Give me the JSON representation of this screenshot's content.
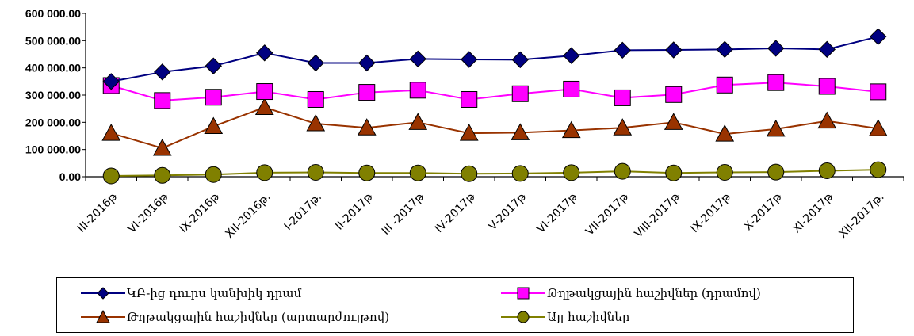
{
  "chart_data": {
    "type": "line",
    "categories": [
      "III-2016թ",
      "VI-2016թ",
      "IX-2016թ",
      "XII-2016թ.",
      "I-2017թ.",
      "II-2017թ",
      "III -2017թ",
      "IV-2017թ",
      "V-2017թ",
      "VI-2017թ",
      "VII-2017թ",
      "VIII-2017թ",
      "IX-2017թ",
      "X-2017թ",
      "XI-2017թ",
      "XII-2017թ."
    ],
    "ylim": [
      0,
      600000
    ],
    "yticks": [
      "0.00",
      "100 000.00",
      "200 000.00",
      "300 000.00",
      "400 000.00",
      "500 000.00",
      "600 000.00"
    ],
    "grid": false,
    "legend_position": "bottom",
    "series": [
      {
        "name": "ԿԲ-ից դուրս կանխիկ դրամ",
        "color": "#000080",
        "marker": "diamond",
        "values": [
          350000,
          385000,
          407000,
          455000,
          418000,
          418000,
          433000,
          431000,
          430000,
          445000,
          465000,
          466000,
          468000,
          472000,
          468000,
          515000
        ]
      },
      {
        "name": "Թղթակցային հաշիվներ (դրամով)",
        "color": "#ff00ff",
        "marker": "square",
        "values": [
          335000,
          280000,
          292000,
          313000,
          284000,
          310000,
          318000,
          284000,
          305000,
          322000,
          290000,
          302000,
          337000,
          346000,
          332000,
          312000
        ]
      },
      {
        "name": "Թղթակցային հաշիվներ (արտարժույթով)",
        "color": "#993300",
        "marker": "triangle",
        "values": [
          160000,
          105000,
          185000,
          255000,
          195000,
          180000,
          200000,
          160000,
          162000,
          170000,
          180000,
          200000,
          157000,
          175000,
          205000,
          177000
        ]
      },
      {
        "name": "Այլ հաշիվներ",
        "color": "#808000",
        "marker": "circle",
        "values": [
          3000,
          5000,
          8000,
          15000,
          16000,
          14000,
          14000,
          11000,
          12000,
          15000,
          20000,
          14000,
          16000,
          17000,
          22000,
          26000
        ]
      }
    ]
  }
}
